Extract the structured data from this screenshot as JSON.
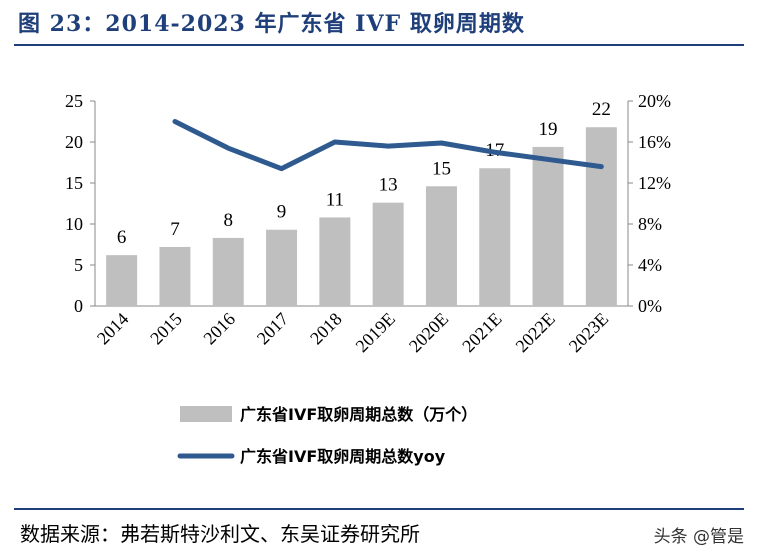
{
  "title": "图 23：2014-2023 年广东省 IVF 取卵周期数",
  "source": "数据来源：弗若斯特沙利文、东吴证券研究所",
  "watermark": "头条 @管是",
  "chart_data": {
    "type": "bar+line",
    "categories": [
      "2014",
      "2015",
      "2016",
      "2017",
      "2018",
      "2019E",
      "2020E",
      "2021E",
      "2022E",
      "2023E"
    ],
    "series": [
      {
        "name": "广东省IVF取卵周期总数（万个）",
        "type": "bar",
        "axis": "left",
        "color": "#bfbfbf",
        "values": [
          6.2,
          7.2,
          8.3,
          9.3,
          10.8,
          12.6,
          14.6,
          16.8,
          19.4,
          21.8
        ],
        "labels": [
          "6",
          "7",
          "8",
          "9",
          "11",
          "13",
          "15",
          "17",
          "19",
          "22"
        ]
      },
      {
        "name": "广东省IVF取卵周期总数yoy",
        "type": "line",
        "axis": "right",
        "color": "#2e5a8f",
        "values": [
          null,
          18.0,
          15.4,
          13.4,
          16.0,
          15.6,
          15.9,
          15.0,
          14.3,
          13.6
        ]
      }
    ],
    "y_left": {
      "range": [
        0,
        25
      ],
      "ticks": [
        "0",
        "5",
        "10",
        "15",
        "20",
        "25"
      ]
    },
    "y_right": {
      "range": [
        0,
        20
      ],
      "ticks": [
        "0%",
        "4%",
        "8%",
        "12%",
        "16%",
        "20%"
      ]
    },
    "grid": false,
    "legend_position": "bottom"
  }
}
